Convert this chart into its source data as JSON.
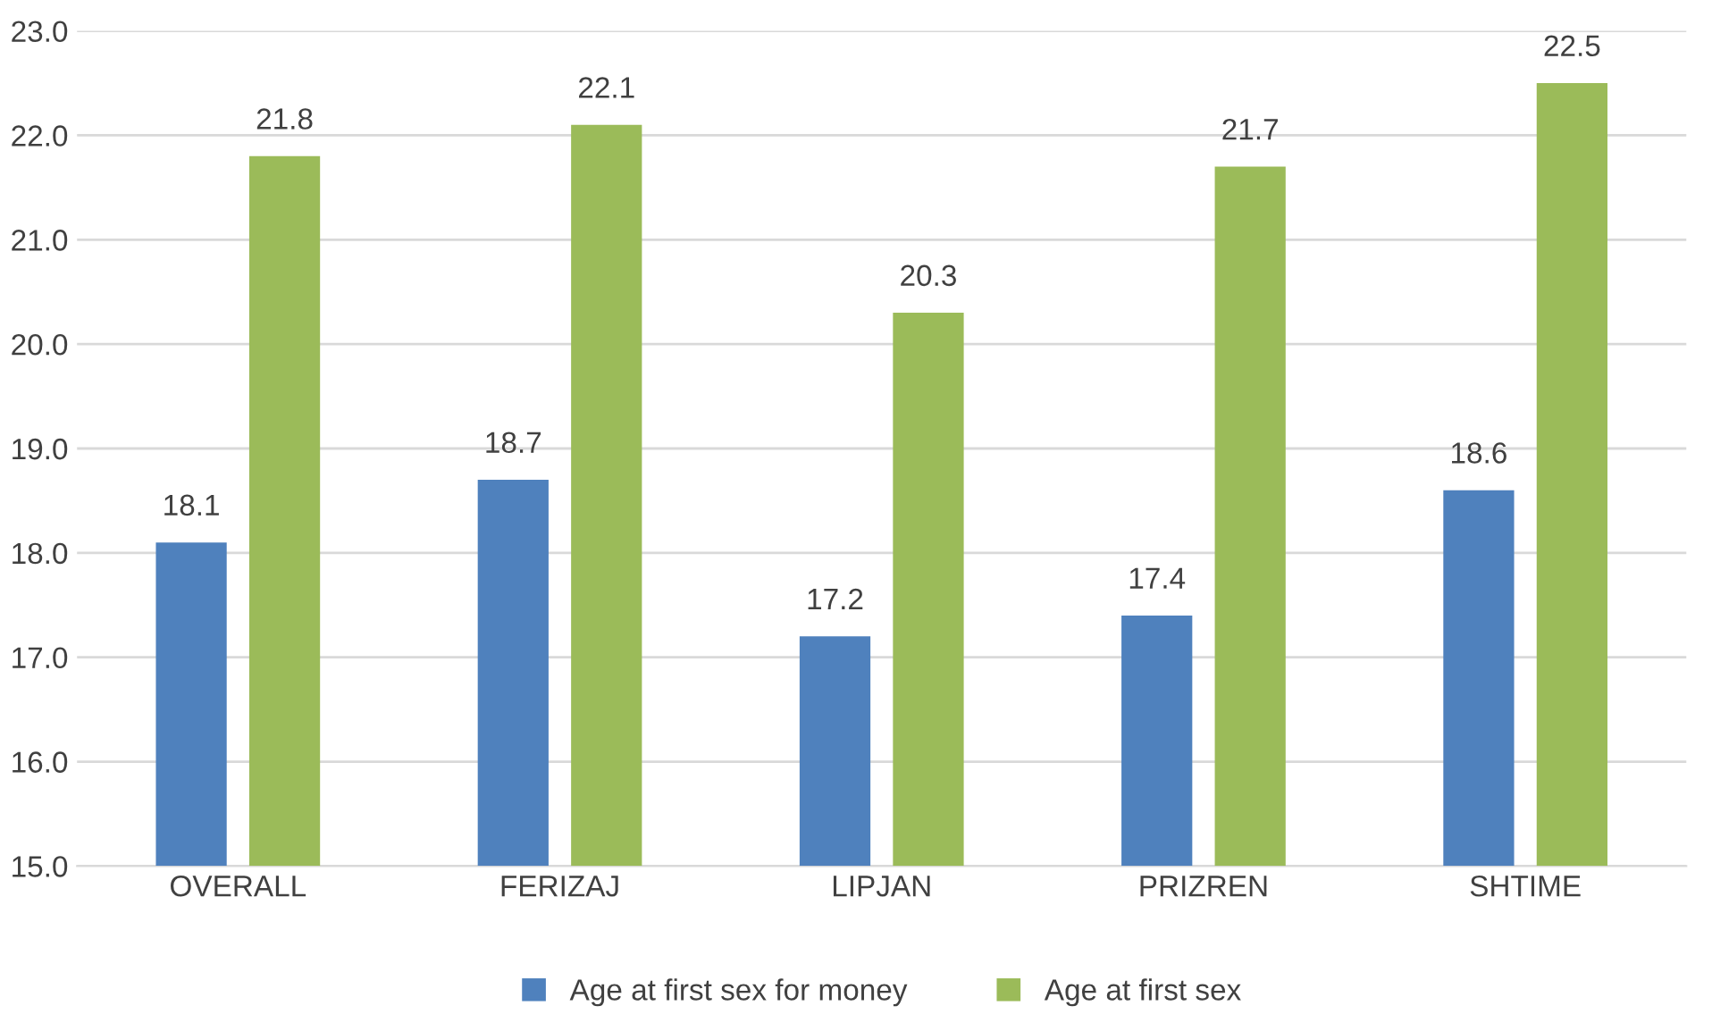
{
  "chart_data": {
    "type": "bar",
    "categories": [
      "OVERALL",
      "FERIZAJ",
      "LIPJAN",
      "PRIZREN",
      "SHTIME"
    ],
    "series": [
      {
        "name": "Age at first sex for money",
        "color": "#4f81bd",
        "values": [
          18.1,
          18.7,
          17.2,
          17.4,
          18.6
        ]
      },
      {
        "name": "Age at first sex",
        "color": "#9bbb59",
        "values": [
          21.8,
          22.1,
          20.3,
          21.7,
          22.5
        ]
      }
    ],
    "ylim": [
      15,
      23
    ],
    "yticks": [
      {
        "value": 15,
        "label": "15.0"
      },
      {
        "value": 16,
        "label": "16.0"
      },
      {
        "value": 17,
        "label": "17.0"
      },
      {
        "value": 18,
        "label": "18.0"
      },
      {
        "value": 19,
        "label": "19.0"
      },
      {
        "value": 20,
        "label": "20.0"
      },
      {
        "value": 21,
        "label": "21.0"
      },
      {
        "value": 22,
        "label": "22.0"
      },
      {
        "value": 23,
        "label": "23.0"
      }
    ],
    "grid": "y",
    "legend": "bottom",
    "data_labels": true
  }
}
